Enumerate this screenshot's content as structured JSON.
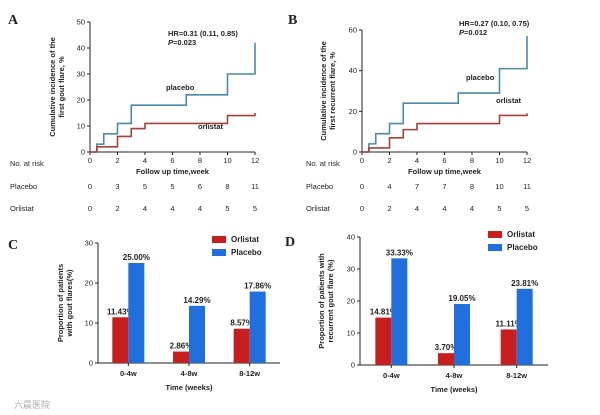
{
  "watermark": "六晨医院",
  "chart_data": [
    {
      "id": "A",
      "type": "line",
      "panel_label": "A",
      "ylabel": "Cumulative incidence of the first gout flare, %",
      "ylabel_lines": [
        "Cumulative incidence of the",
        "first gout flare, %"
      ],
      "xlabel": "Follow up time,week",
      "xlim": [
        0,
        12
      ],
      "ylim": [
        0,
        50
      ],
      "xticks": [
        0,
        2,
        4,
        6,
        8,
        10,
        12
      ],
      "yticks": [
        0,
        10,
        20,
        30,
        40,
        50
      ],
      "annotation": {
        "hr_text": "HR=0.31 (0.11, 0.85)",
        "p_label": "P",
        "p_value": "=0.023"
      },
      "series": [
        {
          "name": "placebo",
          "color": "#4a8aa8",
          "steps": [
            [
              0,
              0
            ],
            [
              0.5,
              3
            ],
            [
              1,
              7
            ],
            [
              2,
              11
            ],
            [
              3,
              18
            ],
            [
              7,
              22
            ],
            [
              10,
              30
            ],
            [
              12,
              42
            ]
          ]
        },
        {
          "name": "orlistat",
          "color": "#a8403a",
          "steps": [
            [
              0,
              0
            ],
            [
              0.5,
              2
            ],
            [
              2,
              6
            ],
            [
              3,
              9
            ],
            [
              4,
              11
            ],
            [
              10,
              14
            ],
            [
              12,
              15
            ]
          ]
        }
      ],
      "risk_table": {
        "title": "No. at risk",
        "rows": [
          {
            "label": "Placebo",
            "values": [
              "0",
              "3",
              "5",
              "5",
              "6",
              "8",
              "11"
            ]
          },
          {
            "label": "Orlistat",
            "values": [
              "0",
              "2",
              "4",
              "4",
              "4",
              "5",
              "5"
            ]
          }
        ]
      }
    },
    {
      "id": "B",
      "type": "line",
      "panel_label": "B",
      "ylabel": "Cumulative incidence of the first recurrent flare, %",
      "ylabel_lines": [
        "Cumulative incidence of the",
        "first recurrent flare, %"
      ],
      "xlabel": "Follow up time,week",
      "xlim": [
        0,
        12
      ],
      "ylim": [
        0,
        60
      ],
      "xticks": [
        0,
        2,
        4,
        6,
        8,
        10,
        12
      ],
      "yticks": [
        0,
        20,
        40,
        60
      ],
      "annotation": {
        "hr_text": "HR=0.27 (0.10, 0.75)",
        "p_label": "P",
        "p_value": "=0.012"
      },
      "series": [
        {
          "name": "placebo",
          "color": "#4a8aa8",
          "steps": [
            [
              0,
              0
            ],
            [
              0.5,
              4
            ],
            [
              1,
              9
            ],
            [
              2,
              14
            ],
            [
              3,
              24
            ],
            [
              7,
              29
            ],
            [
              10,
              41
            ],
            [
              12,
              57
            ]
          ]
        },
        {
          "name": "orlistat",
          "color": "#a8403a",
          "steps": [
            [
              0,
              0
            ],
            [
              0.5,
              2
            ],
            [
              2,
              7
            ],
            [
              3,
              11
            ],
            [
              4,
              14
            ],
            [
              10,
              18
            ],
            [
              12,
              19
            ]
          ]
        }
      ],
      "risk_table": {
        "title": "No. at risk",
        "rows": [
          {
            "label": "Placebo",
            "values": [
              "0",
              "4",
              "7",
              "7",
              "8",
              "10",
              "11"
            ]
          },
          {
            "label": "Orlistat",
            "values": [
              "0",
              "2",
              "4",
              "4",
              "4",
              "5",
              "5"
            ]
          }
        ]
      }
    },
    {
      "id": "C",
      "type": "bar",
      "panel_label": "C",
      "ylabel": "Proportion of patients with gout flares(%)",
      "ylabel_lines": [
        "Proportion of patients",
        "with gout flares(%)"
      ],
      "xlabel": "Time (weeks)",
      "categories": [
        "0-4w",
        "4-8w",
        "8-12w"
      ],
      "ylim": [
        0,
        30
      ],
      "yticks": [
        0,
        10,
        20,
        30
      ],
      "legend_position": "top-right",
      "series": [
        {
          "name": "Orlistat",
          "color": "#c81e1e",
          "values": [
            11.43,
            2.86,
            8.57
          ],
          "labels": [
            "11.43%",
            "2.86%",
            "8.57%"
          ]
        },
        {
          "name": "Placebo",
          "color": "#1f6fdc",
          "values": [
            25.0,
            14.29,
            17.86
          ],
          "labels": [
            "25.00%",
            "14.29%",
            "17.86%"
          ]
        }
      ]
    },
    {
      "id": "D",
      "type": "bar",
      "panel_label": "D",
      "ylabel": "Proportion of patients with recurrent gout flare (%)",
      "ylabel_lines": [
        "Proportion of patients with",
        "recurrent gout flare (%)"
      ],
      "xlabel": "Time (weeks)",
      "categories": [
        "0-4w",
        "4-8w",
        "8-12w"
      ],
      "ylim": [
        0,
        40
      ],
      "yticks": [
        0,
        10,
        20,
        30,
        40
      ],
      "legend_position": "top-right",
      "series": [
        {
          "name": "Orlistat",
          "color": "#c81e1e",
          "values": [
            14.81,
            3.7,
            11.11
          ],
          "labels": [
            "14.81%",
            "3.70%",
            "11.11%"
          ]
        },
        {
          "name": "Placebo",
          "color": "#1f6fdc",
          "values": [
            33.33,
            19.05,
            23.81
          ],
          "labels": [
            "33.33%",
            "19.05%",
            "23.81%"
          ]
        }
      ]
    }
  ]
}
